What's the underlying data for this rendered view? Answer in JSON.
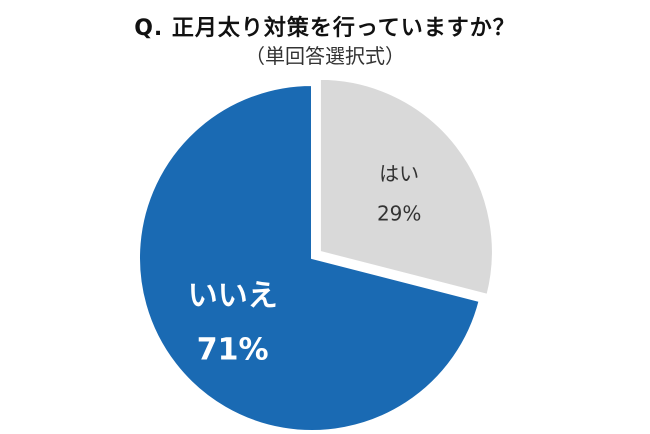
{
  "chart_data": {
    "type": "pie",
    "title": "Q. 正月太り対策を行っていますか？",
    "subtitle": "（単回答選択式）",
    "slices": [
      {
        "label": "はい",
        "value": 29,
        "value_label": "29%",
        "color": "#d9d9d9",
        "text_color": "#333333",
        "exploded": true
      },
      {
        "label": "いいえ",
        "value": 71,
        "value_label": "71%",
        "color": "#1a6ab3",
        "text_color": "#ffffff",
        "exploded": false
      }
    ]
  }
}
